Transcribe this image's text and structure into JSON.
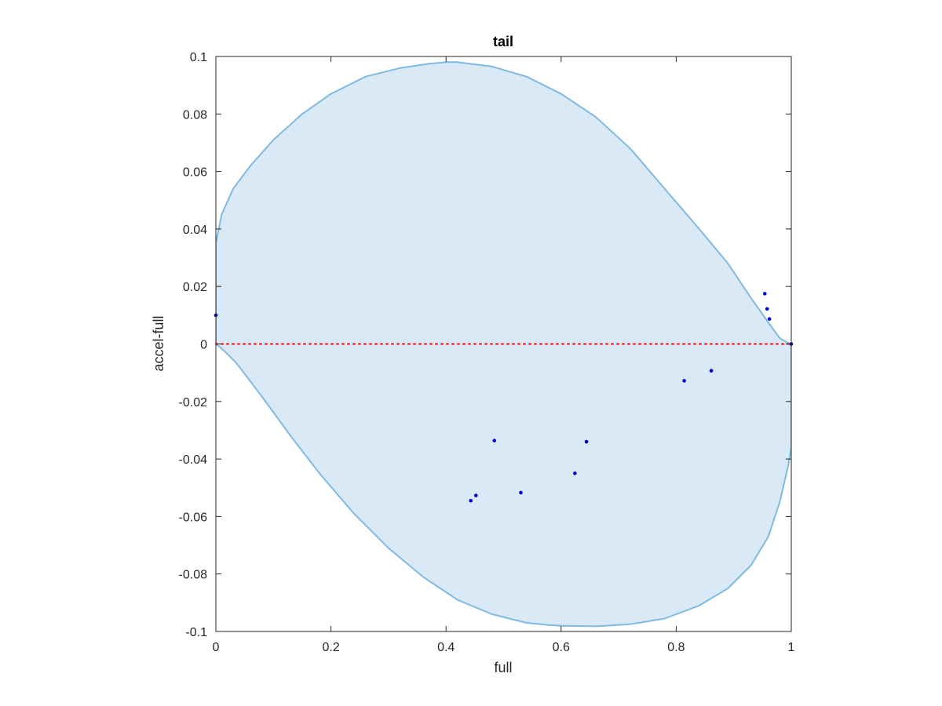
{
  "chart_data": {
    "type": "scatter",
    "title": "tail",
    "xlabel": "full",
    "ylabel": "accel-full",
    "xlim": [
      0,
      1
    ],
    "ylim": [
      -0.1,
      0.1
    ],
    "xticks": [
      0,
      0.2,
      0.4,
      0.6,
      0.8,
      1
    ],
    "xtick_labels": [
      "0",
      "0.2",
      "0.4",
      "0.6",
      "0.8",
      "1"
    ],
    "yticks": [
      -0.1,
      -0.08,
      -0.06,
      -0.04,
      -0.02,
      0,
      0.02,
      0.04,
      0.06,
      0.08,
      0.1
    ],
    "ytick_labels": [
      "-0.1",
      "-0.08",
      "-0.06",
      "-0.04",
      "-0.02",
      "0",
      "0.02",
      "0.04",
      "0.06",
      "0.08",
      "0.1"
    ],
    "grid": false,
    "legend": "none",
    "reference_line": {
      "y": 0,
      "color": "#ff0000",
      "style": "dotted"
    },
    "region": {
      "shape": "closed-curve",
      "fill": "#d9e9f5",
      "stroke": "#7fbbe0",
      "x": [
        0,
        0.01,
        0.03,
        0.06,
        0.1,
        0.15,
        0.2,
        0.26,
        0.32,
        0.37,
        0.4,
        0.42,
        0.48,
        0.54,
        0.6,
        0.66,
        0.72,
        0.78,
        0.84,
        0.89,
        0.93,
        0.96,
        0.98,
        0.995,
        1,
        1,
        0.995,
        0.98,
        0.96,
        0.93,
        0.89,
        0.84,
        0.78,
        0.72,
        0.66,
        0.6,
        0.58,
        0.54,
        0.48,
        0.42,
        0.36,
        0.3,
        0.24,
        0.18,
        0.13,
        0.09,
        0.06,
        0.035,
        0.015,
        0.005,
        0,
        0
      ],
      "y": [
        0.035,
        0.045,
        0.054,
        0.062,
        0.071,
        0.08,
        0.087,
        0.093,
        0.096,
        0.0975,
        0.098,
        0.098,
        0.0965,
        0.093,
        0.087,
        0.079,
        0.068,
        0.054,
        0.04,
        0.028,
        0.016,
        0.0075,
        0.002,
        0.0003,
        0,
        -0.036,
        -0.042,
        -0.055,
        -0.067,
        -0.077,
        -0.085,
        -0.091,
        -0.0955,
        -0.0975,
        -0.0982,
        -0.098,
        -0.0978,
        -0.097,
        -0.094,
        -0.089,
        -0.081,
        -0.071,
        -0.059,
        -0.045,
        -0.032,
        -0.021,
        -0.013,
        -0.0065,
        -0.0025,
        -0.0008,
        0,
        0.035
      ]
    },
    "series": [
      {
        "color": "#0000cc",
        "x": [
          0,
          0.443,
          0.452,
          0.484,
          0.53,
          0.624,
          0.644,
          0.814,
          0.861,
          0.954,
          0.958,
          0.962,
          1
        ],
        "y": [
          0.01,
          -0.0545,
          -0.0527,
          -0.0336,
          -0.0517,
          -0.045,
          -0.034,
          -0.0128,
          -0.0093,
          0.0175,
          0.0122,
          0.0087,
          0
        ]
      }
    ]
  }
}
